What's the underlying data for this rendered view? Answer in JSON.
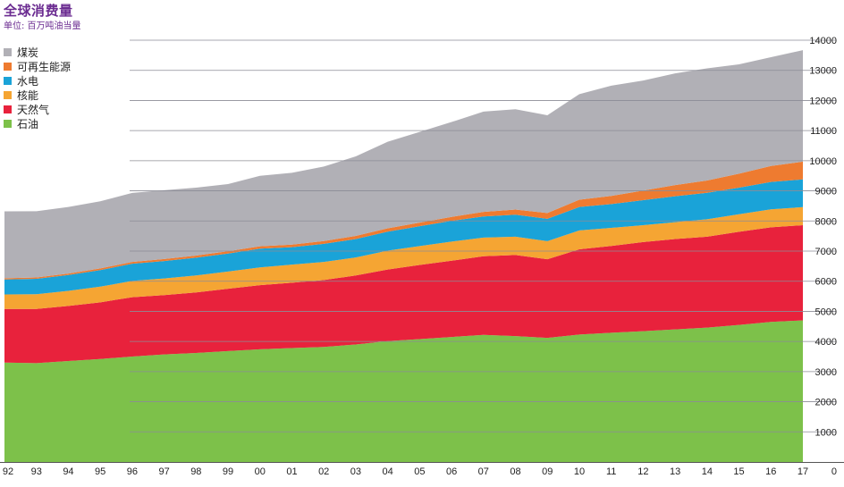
{
  "chart_data": {
    "type": "area",
    "stacked": true,
    "title": "全球消费量",
    "subtitle": "单位: 百万吨油当量",
    "x": [
      "92",
      "93",
      "94",
      "95",
      "96",
      "97",
      "98",
      "99",
      "00",
      "01",
      "02",
      "03",
      "04",
      "05",
      "06",
      "07",
      "08",
      "09",
      "10",
      "11",
      "12",
      "13",
      "14",
      "15",
      "16",
      "17"
    ],
    "ylim": [
      0,
      14000
    ],
    "y_ticks": [
      0,
      1000,
      2000,
      3000,
      4000,
      5000,
      6000,
      7000,
      8000,
      9000,
      10000,
      11000,
      12000,
      13000,
      14000
    ],
    "y_axis_position": "right",
    "grid": true,
    "legend_position": "top-left",
    "series": [
      {
        "name": "石油",
        "color": "#7dc14a",
        "values": [
          3300,
          3280,
          3350,
          3420,
          3500,
          3570,
          3620,
          3680,
          3740,
          3780,
          3820,
          3900,
          4010,
          4080,
          4150,
          4220,
          4180,
          4120,
          4230,
          4290,
          4340,
          4400,
          4460,
          4550,
          4650,
          4700
        ]
      },
      {
        "name": "天然气",
        "color": "#e8223c",
        "values": [
          1780,
          1800,
          1830,
          1880,
          1970,
          1970,
          2010,
          2070,
          2130,
          2170,
          2220,
          2290,
          2380,
          2460,
          2530,
          2610,
          2690,
          2610,
          2830,
          2880,
          2960,
          3000,
          3020,
          3090,
          3140,
          3160
        ]
      },
      {
        "name": "核能",
        "color": "#f5a533",
        "values": [
          480,
          490,
          500,
          520,
          540,
          550,
          560,
          570,
          590,
          600,
          600,
          600,
          625,
          625,
          635,
          620,
          610,
          600,
          625,
          600,
          560,
          560,
          575,
          585,
          595,
          600
        ]
      },
      {
        "name": "水电",
        "color": "#1aa3d8",
        "values": [
          500,
          510,
          525,
          550,
          570,
          580,
          590,
          600,
          620,
          580,
          600,
          610,
          630,
          660,
          690,
          700,
          730,
          740,
          780,
          790,
          830,
          860,
          880,
          880,
          910,
          920
        ]
      },
      {
        "name": "可再生能源",
        "color": "#ee7b30",
        "values": [
          40,
          45,
          50,
          55,
          60,
          65,
          70,
          75,
          80,
          85,
          95,
          105,
          110,
          120,
          130,
          150,
          170,
          195,
          240,
          270,
          320,
          370,
          410,
          465,
          530,
          590
        ]
      },
      {
        "name": "煤炭",
        "color": "#b1b0b6",
        "values": [
          2220,
          2200,
          2210,
          2230,
          2290,
          2285,
          2255,
          2230,
          2340,
          2385,
          2470,
          2640,
          2875,
          3010,
          3150,
          3330,
          3330,
          3245,
          3505,
          3660,
          3650,
          3710,
          3720,
          3630,
          3610,
          3700
        ]
      }
    ]
  }
}
